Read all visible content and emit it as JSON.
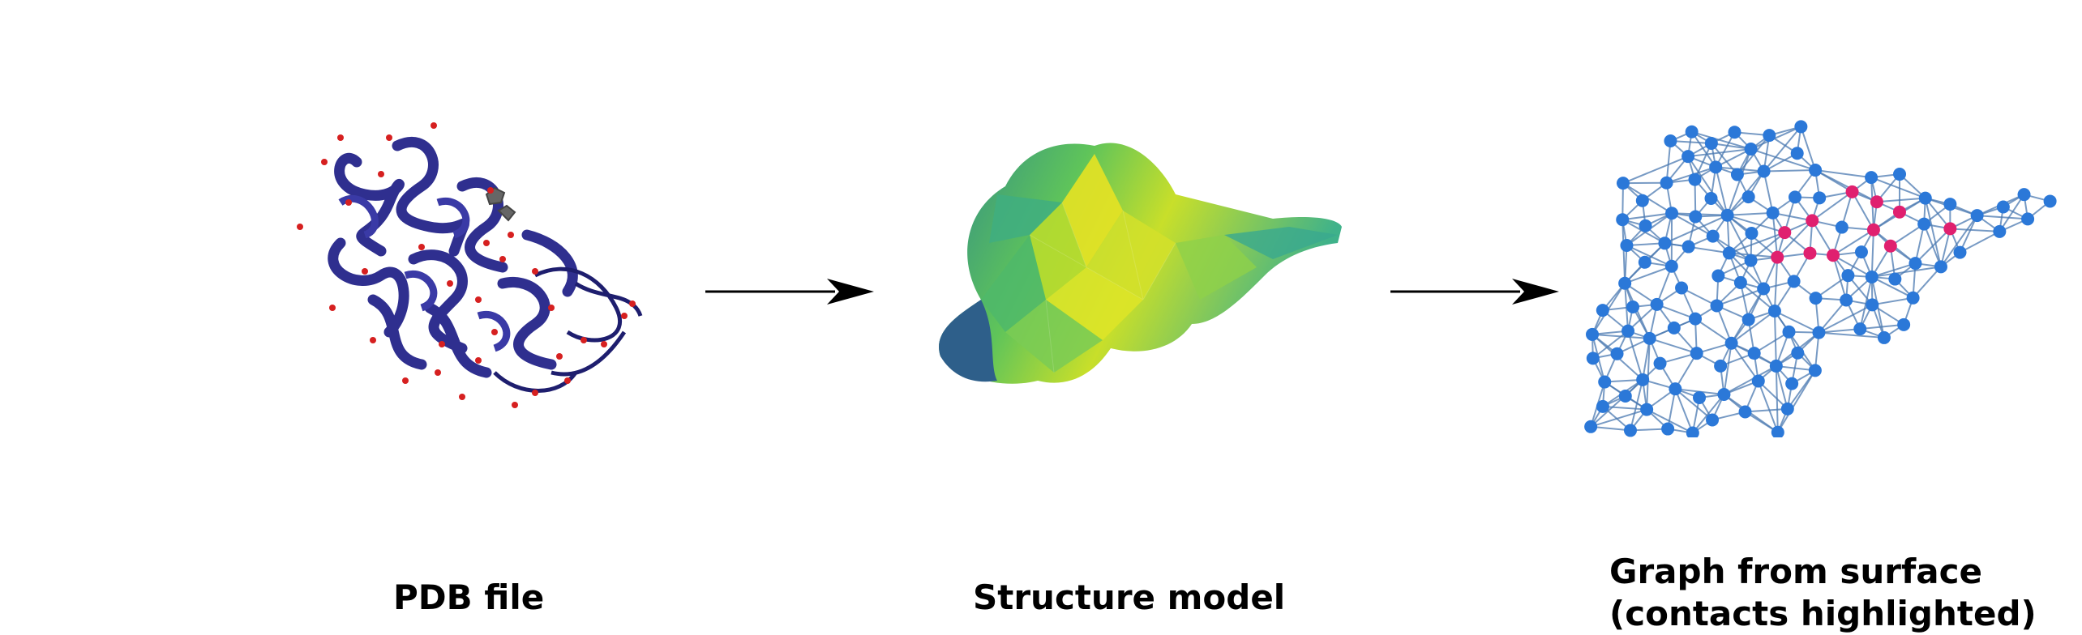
{
  "panels": [
    {
      "id": "pdb",
      "caption": [
        "PDB file"
      ]
    },
    {
      "id": "structure",
      "caption": [
        "Structure model"
      ]
    },
    {
      "id": "graph",
      "caption": [
        "Graph from surface",
        "(contacts highlighted)"
      ]
    }
  ],
  "colors": {
    "ribbon": "#2f2f8f",
    "water": "#d62020",
    "surface_dark": "#2e6b8a",
    "surface_mid": "#2fb37a",
    "surface_light": "#d8e21a",
    "graph_node": "#2b78d8",
    "graph_edge": "#4a78b0",
    "contact_node": "#e0206f",
    "arrow": "#000000"
  },
  "icons": [
    "protein-ribbon-icon",
    "molecular-surface-icon",
    "surface-graph-icon",
    "arrow-right-icon"
  ]
}
